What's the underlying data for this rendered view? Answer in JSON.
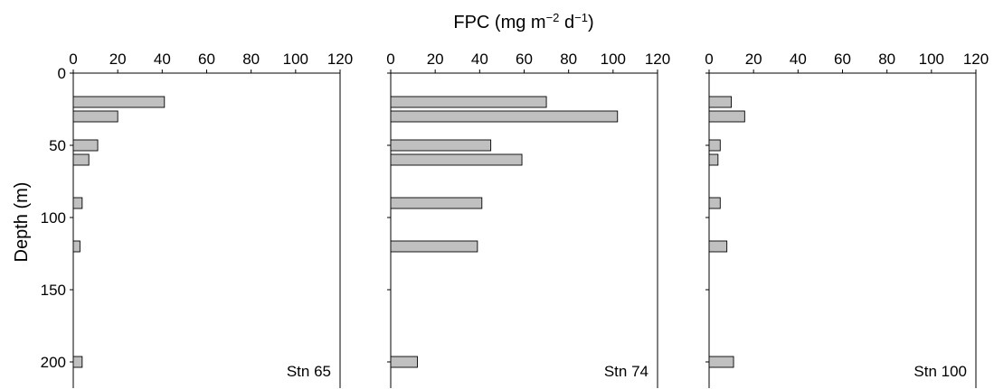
{
  "chart_data": {
    "type": "bar",
    "orientation": "horizontal",
    "title": "",
    "xlabel": "FPC (mg m⁻² d⁻¹)",
    "xlabel_parts": {
      "base": "FPC (mg m",
      "sup1": "−2",
      "mid": " d",
      "sup2": "−1",
      "end": ")"
    },
    "ylabel": "Depth (m)",
    "xlim": [
      0,
      120
    ],
    "ylim": [
      0,
      220
    ],
    "y_inverted": true,
    "xticks": [
      0,
      20,
      40,
      60,
      80,
      100,
      120
    ],
    "yticks": [
      0,
      50,
      100,
      150,
      200
    ],
    "x_axis_position": "top",
    "grid": false,
    "legend": "none",
    "bar_color": "#c0c0c0",
    "panels": [
      {
        "label": "Stn 65",
        "bars": [
          {
            "depth": 20,
            "value": 41
          },
          {
            "depth": 30,
            "value": 20
          },
          {
            "depth": 50,
            "value": 11
          },
          {
            "depth": 60,
            "value": 7
          },
          {
            "depth": 90,
            "value": 4
          },
          {
            "depth": 120,
            "value": 3
          },
          {
            "depth": 200,
            "value": 4
          }
        ]
      },
      {
        "label": "Stn 74",
        "bars": [
          {
            "depth": 20,
            "value": 70
          },
          {
            "depth": 30,
            "value": 102
          },
          {
            "depth": 50,
            "value": 45
          },
          {
            "depth": 60,
            "value": 59
          },
          {
            "depth": 90,
            "value": 41
          },
          {
            "depth": 120,
            "value": 39
          },
          {
            "depth": 200,
            "value": 12
          }
        ]
      },
      {
        "label": "Stn 100",
        "bars": [
          {
            "depth": 20,
            "value": 10
          },
          {
            "depth": 30,
            "value": 16
          },
          {
            "depth": 50,
            "value": 5
          },
          {
            "depth": 60,
            "value": 4
          },
          {
            "depth": 90,
            "value": 5
          },
          {
            "depth": 120,
            "value": 8
          },
          {
            "depth": 200,
            "value": 11
          }
        ]
      }
    ]
  }
}
